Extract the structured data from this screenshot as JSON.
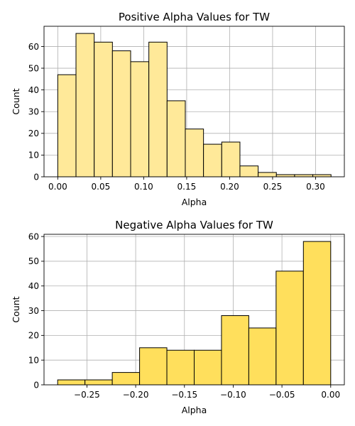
{
  "chart_data": [
    {
      "type": "bar",
      "title": "Positive Alpha Values for TW",
      "xlabel": "Alpha",
      "ylabel": "Count",
      "color": "#ffe999",
      "xlim": [
        -0.016,
        0.3335
      ],
      "ylim": [
        0,
        69.3
      ],
      "xticks": [
        0.0,
        0.05,
        0.1,
        0.15,
        0.2,
        0.25,
        0.3
      ],
      "xtick_labels": [
        "0.00",
        "0.05",
        "0.10",
        "0.15",
        "0.20",
        "0.25",
        "0.30"
      ],
      "yticks": [
        0,
        10,
        20,
        30,
        40,
        50,
        60
      ],
      "ytick_labels": [
        "0",
        "10",
        "20",
        "30",
        "40",
        "50",
        "60"
      ],
      "grid": true,
      "bin_edges": [
        0.0,
        0.0212,
        0.0424,
        0.0636,
        0.0848,
        0.106,
        0.1272,
        0.1484,
        0.1696,
        0.1908,
        0.212,
        0.2332,
        0.2544,
        0.2756,
        0.2968,
        0.318
      ],
      "values": [
        47,
        66,
        62,
        58,
        53,
        62,
        35,
        22,
        15,
        16,
        5,
        2,
        1,
        1,
        1
      ]
    },
    {
      "type": "bar",
      "title": "Negative Alpha Values for TW",
      "xlabel": "Alpha",
      "ylabel": "Count",
      "color": "#ffdf5c",
      "xlim": [
        -0.294,
        0.014
      ],
      "ylim": [
        0,
        60.9
      ],
      "xticks": [
        -0.25,
        -0.2,
        -0.15,
        -0.1,
        -0.05,
        0.0
      ],
      "xtick_labels": [
        "−0.25",
        "−0.20",
        "−0.15",
        "−0.10",
        "−0.05",
        "0.00"
      ],
      "yticks": [
        0,
        10,
        20,
        30,
        40,
        50,
        60
      ],
      "ytick_labels": [
        "0",
        "10",
        "20",
        "30",
        "40",
        "50",
        "60"
      ],
      "grid": true,
      "bin_edges": [
        -0.28,
        -0.252,
        -0.224,
        -0.196,
        -0.168,
        -0.14,
        -0.112,
        -0.084,
        -0.056,
        -0.028,
        0.0
      ],
      "values": [
        2,
        2,
        5,
        15,
        14,
        14,
        28,
        23,
        46,
        58
      ]
    }
  ]
}
